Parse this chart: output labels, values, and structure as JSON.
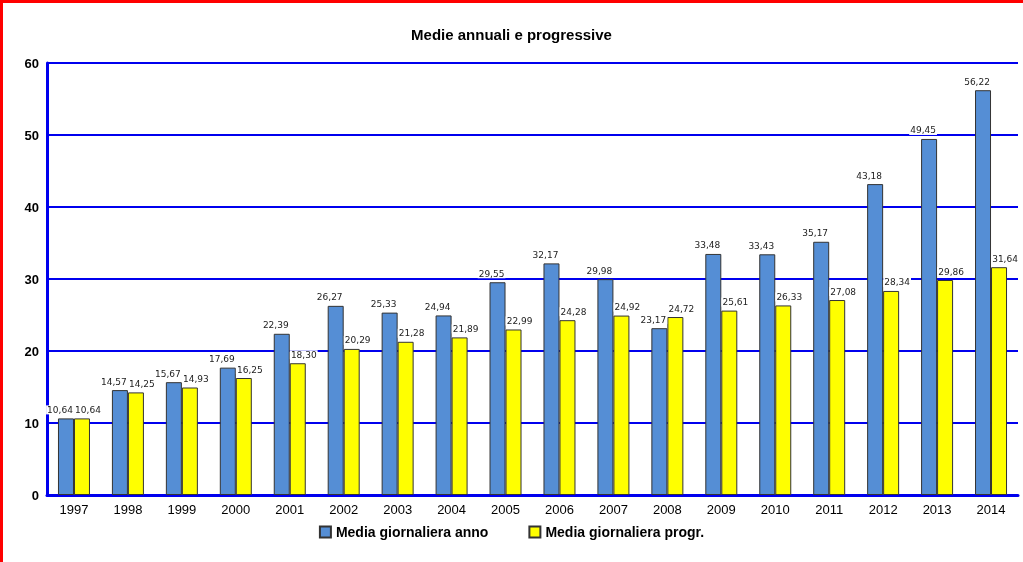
{
  "chart_data": {
    "type": "bar",
    "title": "Medie annuali e progressive",
    "categories": [
      "1997",
      "1998",
      "1999",
      "2000",
      "2001",
      "2002",
      "2003",
      "2004",
      "2005",
      "2006",
      "2007",
      "2008",
      "2009",
      "2010",
      "2011",
      "2012",
      "2013",
      "2014"
    ],
    "series": [
      {
        "name": "Media giornaliera anno",
        "color": "#558ed5",
        "values": [
          10.64,
          14.57,
          15.67,
          17.69,
          22.39,
          26.27,
          25.33,
          24.94,
          29.55,
          32.17,
          29.98,
          23.17,
          33.48,
          33.43,
          35.17,
          43.18,
          49.45,
          56.22
        ],
        "value_labels": [
          "10,64",
          "14,57",
          "15,67",
          "17,69",
          "22,39",
          "26,27",
          "25,33",
          "24,94",
          "29,55",
          "32,17",
          "29,98",
          "23,17",
          "33,48",
          "33,43",
          "35,17",
          "43,18",
          "49,45",
          "56,22"
        ]
      },
      {
        "name": "Media giornaliera progr.",
        "color": "#ffff00",
        "values": [
          10.64,
          14.25,
          14.93,
          16.25,
          18.3,
          20.29,
          21.28,
          21.89,
          22.99,
          24.28,
          24.92,
          24.72,
          25.61,
          26.33,
          27.08,
          28.34,
          29.86,
          31.64
        ],
        "value_labels": [
          "10,64",
          "14,25",
          "14,93",
          "16,25",
          "18,30",
          "20,29",
          "21,28",
          "21,89",
          "22,99",
          "24,28",
          "24,92",
          "24,72",
          "25,61",
          "26,33",
          "27,08",
          "28,34",
          "29,86",
          "31,64"
        ]
      }
    ],
    "ylim": [
      0,
      60
    ],
    "yticks": [
      0,
      10,
      20,
      30,
      40,
      50,
      60
    ],
    "grid": "y",
    "legend": "bottom"
  }
}
